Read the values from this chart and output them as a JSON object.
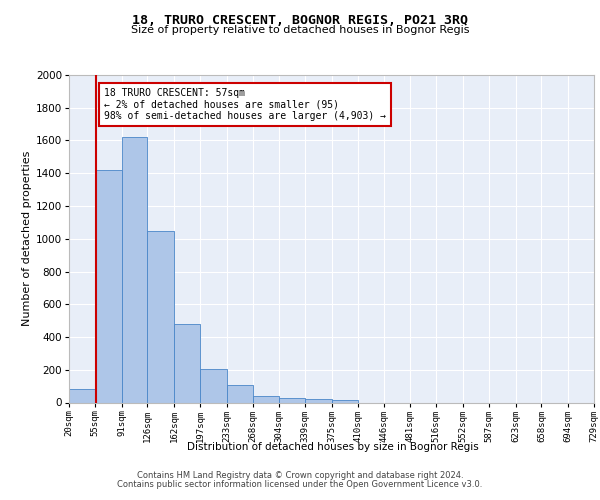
{
  "title1": "18, TRURO CRESCENT, BOGNOR REGIS, PO21 3RQ",
  "title2": "Size of property relative to detached houses in Bognor Regis",
  "xlabel": "Distribution of detached houses by size in Bognor Regis",
  "ylabel": "Number of detached properties",
  "annotation_title": "18 TRURO CRESCENT: 57sqm",
  "annotation_line1": "← 2% of detached houses are smaller (95)",
  "annotation_line2": "98% of semi-detached houses are larger (4,903) →",
  "footer1": "Contains HM Land Registry data © Crown copyright and database right 2024.",
  "footer2": "Contains public sector information licensed under the Open Government Licence v3.0.",
  "bar_edges": [
    20,
    55,
    91,
    126,
    162,
    197,
    233,
    268,
    304,
    339,
    375,
    410,
    446,
    481,
    516,
    552,
    587,
    623,
    658,
    694,
    729
  ],
  "bar_heights": [
    80,
    1420,
    1620,
    1050,
    480,
    205,
    105,
    40,
    28,
    20,
    15,
    0,
    0,
    0,
    0,
    0,
    0,
    0,
    0,
    0
  ],
  "bar_color": "#aec6e8",
  "bar_edgecolor": "#4a86c8",
  "vline_x": 57,
  "vline_color": "#cc0000",
  "ylim": [
    0,
    2000
  ],
  "xlim": [
    20,
    729
  ],
  "bg_color": "#e8eef8",
  "grid_color": "#ffffff",
  "annotation_box_edgecolor": "#cc0000",
  "annotation_box_facecolor": "#ffffff",
  "yticks": [
    0,
    200,
    400,
    600,
    800,
    1000,
    1200,
    1400,
    1600,
    1800,
    2000
  ]
}
